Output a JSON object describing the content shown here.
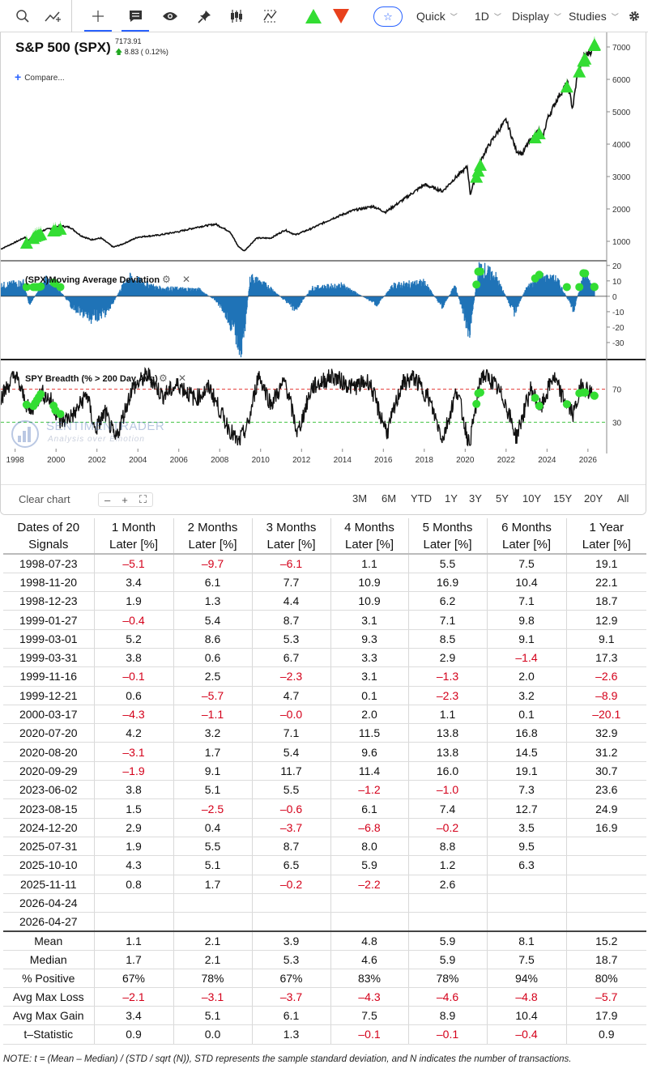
{
  "toolbar": {
    "quick_label": "Quick",
    "interval_label": "1D",
    "display_label": "Display",
    "studies_label": "Studies",
    "icons": [
      "search-icon",
      "indicator-icon",
      "crosshair-icon",
      "comment-icon",
      "eye-icon",
      "pin-icon",
      "candlestick-icon",
      "zigzag-icon",
      "buy-signal-icon",
      "sell-signal-icon",
      "star-icon",
      "gear-icon"
    ],
    "colors": {
      "accent": "#2962ff",
      "buy": "#33dd33",
      "sell": "#e8401c"
    }
  },
  "chart": {
    "symbol_title": "S&P 500 (SPX)",
    "last_price": "7173.91",
    "change": "8.83 ( 0.12%)",
    "compare_label": "Compare...",
    "watermark_name": "SENTIMENTRADER",
    "watermark_tagline": "Analysis over Emotion",
    "colors": {
      "price_line": "#111111",
      "deviation_fill": "#1f73b7",
      "breadth_line": "#111111",
      "upper_band": "#e53935",
      "lower_band": "#43c443",
      "signal_marker": "#33dd33"
    }
  },
  "chart_data": [
    {
      "type": "line",
      "title": "S&P 500 (SPX)",
      "x": [
        1997.3,
        1998.0,
        1998.5,
        1998.6,
        1999.0,
        1999.5,
        2000.2,
        2000.7,
        2001.2,
        2001.7,
        2002.2,
        2002.8,
        2003.2,
        2004.0,
        2005.0,
        2006.0,
        2007.0,
        2007.8,
        2008.5,
        2008.9,
        2009.2,
        2009.8,
        2010.5,
        2011.2,
        2011.7,
        2012.5,
        2013.5,
        2014.5,
        2015.5,
        2016.1,
        2017.0,
        2018.0,
        2018.9,
        2019.5,
        2020.1,
        2020.25,
        2020.7,
        2021.0,
        2021.5,
        2022.0,
        2022.5,
        2022.8,
        2023.0,
        2023.6,
        2023.8,
        2024.0,
        2024.5,
        2025.0,
        2025.25,
        2025.5,
        2025.8,
        2026.2,
        2026.32
      ],
      "values": [
        760,
        970,
        1130,
        990,
        1270,
        1360,
        1480,
        1430,
        1180,
        1050,
        1100,
        820,
        900,
        1130,
        1190,
        1300,
        1450,
        1530,
        1300,
        850,
        700,
        1100,
        1100,
        1350,
        1200,
        1400,
        1700,
        1950,
        2080,
        1900,
        2300,
        2750,
        2550,
        2950,
        3300,
        2450,
        3400,
        3800,
        4300,
        4750,
        3800,
        3700,
        3950,
        4450,
        4200,
        4750,
        5400,
        5900,
        5100,
        6200,
        6700,
        6900,
        7173.91
      ],
      "xlim": [
        1997.3,
        2026.6
      ],
      "ylim": [
        500,
        7250
      ],
      "yticks": [
        1000,
        2000,
        3000,
        4000,
        5000,
        6000,
        7000
      ],
      "signals_x": [
        1998.56,
        1998.89,
        1998.98,
        1999.07,
        1999.16,
        1999.25,
        1999.88,
        1999.97,
        2000.21,
        2020.55,
        2020.64,
        2020.74,
        2023.42,
        2023.62,
        2024.97,
        2025.58,
        2025.78,
        2025.86,
        2026.31,
        2026.32
      ]
    },
    {
      "type": "area",
      "title": "(SPX)Moving Average Deviation",
      "x": [
        1997.3,
        1998.4,
        1998.7,
        1999.5,
        2000.0,
        2000.8,
        2001.7,
        2002.5,
        2003.5,
        2005.0,
        2007.0,
        2007.8,
        2008.2,
        2008.8,
        2009.1,
        2009.5,
        2010.5,
        2011.7,
        2012.5,
        2014.0,
        2015.7,
        2016.5,
        2018.0,
        2018.9,
        2019.5,
        2020.2,
        2020.7,
        2021.5,
        2022.4,
        2023.0,
        2023.6,
        2024.5,
        2025.3,
        2025.8,
        2026.32
      ],
      "values": [
        8,
        10,
        -6,
        12,
        8,
        -8,
        -16,
        -12,
        14,
        6,
        5,
        -3,
        -10,
        -28,
        -38,
        14,
        6,
        -10,
        6,
        8,
        -6,
        8,
        10,
        -8,
        8,
        -26,
        22,
        14,
        -12,
        6,
        14,
        12,
        -10,
        16,
        6
      ],
      "ylim": [
        -40,
        22
      ],
      "yticks": [
        20,
        10,
        0,
        -10,
        -20,
        -30
      ]
    },
    {
      "type": "line",
      "title": "SPY Breadth (% > 200 Day Avg)",
      "x": [
        1997.3,
        1998.0,
        1998.7,
        1999.3,
        1999.8,
        2000.2,
        2000.9,
        2001.5,
        2001.9,
        2002.4,
        2002.9,
        2003.7,
        2004.5,
        2005.2,
        2006.0,
        2006.8,
        2007.5,
        2008.2,
        2008.9,
        2009.4,
        2009.9,
        2010.5,
        2011.2,
        2011.8,
        2012.5,
        2013.5,
        2014.5,
        2015.3,
        2015.8,
        2016.2,
        2016.9,
        2017.5,
        2018.2,
        2018.9,
        2019.6,
        2020.2,
        2020.8,
        2021.3,
        2021.9,
        2022.5,
        2023.2,
        2023.7,
        2024.3,
        2024.8,
        2025.3,
        2025.7,
        2026.32
      ],
      "values": [
        60,
        88,
        42,
        66,
        55,
        30,
        40,
        65,
        20,
        42,
        8,
        70,
        88,
        62,
        76,
        58,
        72,
        34,
        4,
        28,
        88,
        52,
        80,
        16,
        72,
        86,
        72,
        80,
        42,
        18,
        76,
        84,
        60,
        10,
        70,
        2,
        88,
        80,
        58,
        12,
        70,
        46,
        86,
        58,
        40,
        76,
        62
      ],
      "ylim": [
        0,
        100
      ],
      "yticks": [
        70,
        30
      ],
      "bands": [
        70,
        30
      ]
    }
  ],
  "xaxis": {
    "year_ticks": [
      "1998",
      "2000",
      "2002",
      "2004",
      "2006",
      "2008",
      "2010",
      "2012",
      "2014",
      "2016",
      "2018",
      "2020",
      "2022",
      "2024",
      "2026"
    ]
  },
  "footer": {
    "clear_label": "Clear chart",
    "zoom_out": "–",
    "zoom_in": "+",
    "fit_icon": "fit-screen-icon",
    "ranges": [
      "3M",
      "6M",
      "YTD",
      "1Y",
      "3Y",
      "5Y",
      "10Y",
      "15Y",
      "20Y",
      "All"
    ]
  },
  "table": {
    "header_first": [
      "Dates of 20",
      "Signals"
    ],
    "headers": [
      [
        "1 Month",
        "Later [%]"
      ],
      [
        "2 Months",
        "Later [%]"
      ],
      [
        "3 Months",
        "Later [%]"
      ],
      [
        "4 Months",
        "Later [%]"
      ],
      [
        "5 Months",
        "Later [%]"
      ],
      [
        "6 Months",
        "Later [%]"
      ],
      [
        "1 Year",
        "Later [%]"
      ]
    ],
    "rows": [
      [
        "1998-07-23",
        "–5.1",
        "–9.7",
        "–6.1",
        "1.1",
        "5.5",
        "7.5",
        "19.1"
      ],
      [
        "1998-11-20",
        "3.4",
        "6.1",
        "7.7",
        "10.9",
        "16.9",
        "10.4",
        "22.1"
      ],
      [
        "1998-12-23",
        "1.9",
        "1.3",
        "4.4",
        "10.9",
        "6.2",
        "7.1",
        "18.7"
      ],
      [
        "1999-01-27",
        "–0.4",
        "5.4",
        "8.7",
        "3.1",
        "7.1",
        "9.8",
        "12.9"
      ],
      [
        "1999-03-01",
        "5.2",
        "8.6",
        "5.3",
        "9.3",
        "8.5",
        "9.1",
        "9.1"
      ],
      [
        "1999-03-31",
        "3.8",
        "0.6",
        "6.7",
        "3.3",
        "2.9",
        "–1.4",
        "17.3"
      ],
      [
        "1999-11-16",
        "–0.1",
        "2.5",
        "–2.3",
        "3.1",
        "–1.3",
        "2.0",
        "–2.6"
      ],
      [
        "1999-12-21",
        "0.6",
        "–5.7",
        "4.7",
        "0.1",
        "–2.3",
        "3.2",
        "–8.9"
      ],
      [
        "2000-03-17",
        "–4.3",
        "–1.1",
        "–0.0",
        "2.0",
        "1.1",
        "0.1",
        "–20.1"
      ],
      [
        "2020-07-20",
        "4.2",
        "3.2",
        "7.1",
        "11.5",
        "13.8",
        "16.8",
        "32.9"
      ],
      [
        "2020-08-20",
        "–3.1",
        "1.7",
        "5.4",
        "9.6",
        "13.8",
        "14.5",
        "31.2"
      ],
      [
        "2020-09-29",
        "–1.9",
        "9.1",
        "11.7",
        "11.4",
        "16.0",
        "19.1",
        "30.7"
      ],
      [
        "2023-06-02",
        "3.8",
        "5.1",
        "5.5",
        "–1.2",
        "–1.0",
        "7.3",
        "23.6"
      ],
      [
        "2023-08-15",
        "1.5",
        "–2.5",
        "–0.6",
        "6.1",
        "7.4",
        "12.7",
        "24.9"
      ],
      [
        "2024-12-20",
        "2.9",
        "0.4",
        "–3.7",
        "–6.8",
        "–0.2",
        "3.5",
        "16.9"
      ],
      [
        "2025-07-31",
        "1.9",
        "5.5",
        "8.7",
        "8.0",
        "8.8",
        "9.5",
        ""
      ],
      [
        "2025-10-10",
        "4.3",
        "5.1",
        "6.5",
        "5.9",
        "1.2",
        "6.3",
        ""
      ],
      [
        "2025-11-11",
        "0.8",
        "1.7",
        "–0.2",
        "–2.2",
        "2.6",
        "",
        ""
      ],
      [
        "2026-04-24",
        "",
        "",
        "",
        "",
        "",
        "",
        ""
      ],
      [
        "2026-04-27",
        "",
        "",
        "",
        "",
        "",
        "",
        ""
      ]
    ],
    "summary": [
      [
        "Mean",
        "1.1",
        "2.1",
        "3.9",
        "4.8",
        "5.9",
        "8.1",
        "15.2"
      ],
      [
        "Median",
        "1.7",
        "2.1",
        "5.3",
        "4.6",
        "5.9",
        "7.5",
        "18.7"
      ],
      [
        "% Positive",
        "67%",
        "78%",
        "67%",
        "83%",
        "78%",
        "94%",
        "80%"
      ],
      [
        "Avg Max Loss",
        "–2.1",
        "–3.1",
        "–3.7",
        "–4.3",
        "–4.6",
        "–4.8",
        "–5.7"
      ],
      [
        "Avg Max Gain",
        "3.4",
        "5.1",
        "6.1",
        "7.5",
        "8.9",
        "10.4",
        "17.9"
      ],
      [
        "t–Statistic",
        "0.9",
        "0.0",
        "1.3",
        "–0.1",
        "–0.1",
        "–0.4",
        "0.9"
      ]
    ],
    "note": "NOTE: t = (Mean – Median) / (STD / sqrt (N)), STD represents the sample standard deviation, and N indicates the number of transactions."
  }
}
